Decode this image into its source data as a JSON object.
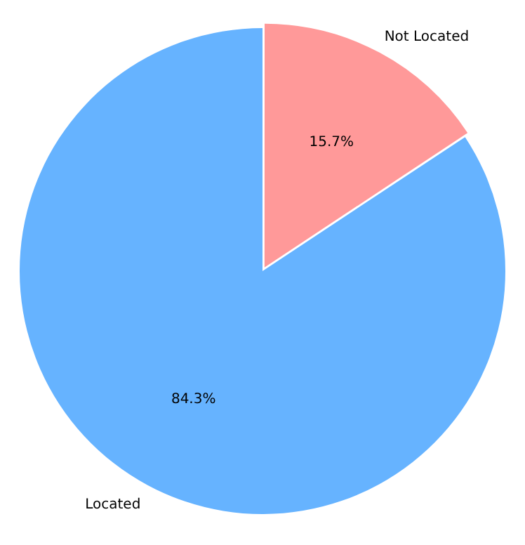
{
  "chart_data": {
    "type": "pie",
    "categories": [
      "Located",
      "Not Located"
    ],
    "values": [
      84.3,
      15.7
    ],
    "colors": [
      "#66b3ff",
      "#ff9999"
    ],
    "value_labels": [
      "84.3%",
      "15.7%"
    ],
    "legend": false
  }
}
